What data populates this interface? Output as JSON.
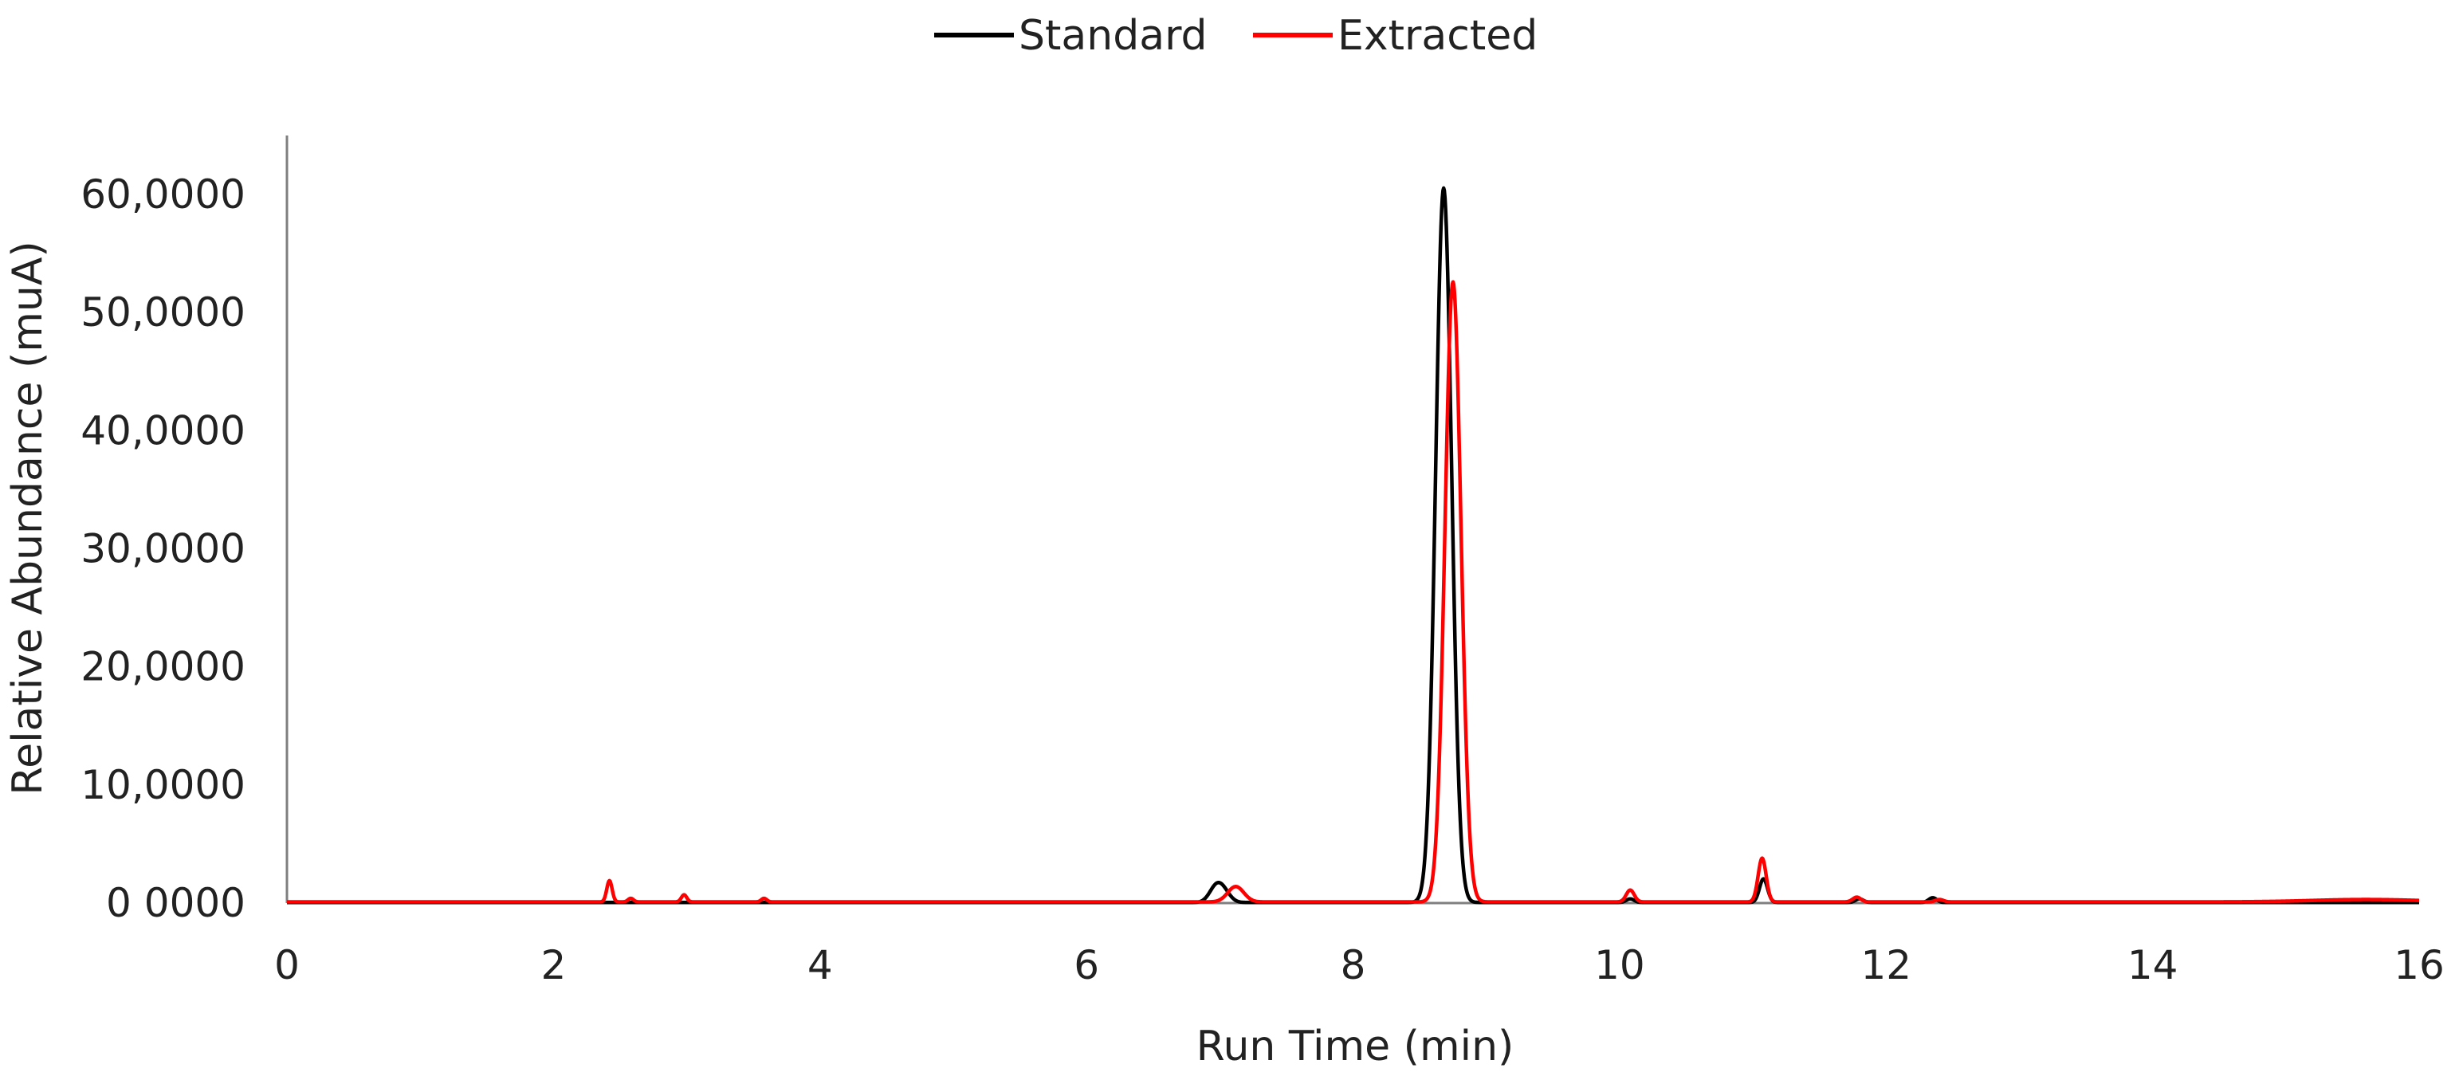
{
  "chart_data": {
    "type": "line",
    "title": "",
    "xlabel": "Run Time (min)",
    "ylabel": "Relative Abundance (muA)",
    "xlim": [
      0,
      16
    ],
    "ylim": [
      0,
      65
    ],
    "x_ticks": [
      0,
      2,
      4,
      6,
      8,
      10,
      12,
      14,
      16
    ],
    "x_tick_labels": [
      "0",
      "2",
      "4",
      "6",
      "8",
      "10",
      "12",
      "14",
      "16"
    ],
    "y_ticks": [
      0,
      10,
      20,
      30,
      40,
      50,
      60
    ],
    "y_tick_labels": [
      "0 0000",
      "10,0000",
      "20,0000",
      "30,0000",
      "40,0000",
      "50,0000",
      "60,0000"
    ],
    "grid": false,
    "legend_position": "top-center",
    "series": [
      {
        "name": "Standard",
        "color": "#000000",
        "baseline": 0.05,
        "peaks": [
          {
            "rt": 6.97,
            "height": 1.2,
            "width": 0.05
          },
          {
            "rt": 7.03,
            "height": 0.8,
            "width": 0.05
          },
          {
            "rt": 8.68,
            "height": 60.5,
            "width": 0.06
          },
          {
            "rt": 10.08,
            "height": 0.3,
            "width": 0.03
          },
          {
            "rt": 11.08,
            "height": 2.0,
            "width": 0.03
          },
          {
            "rt": 11.8,
            "height": 0.3,
            "width": 0.03
          },
          {
            "rt": 12.35,
            "height": 0.4,
            "width": 0.03
          }
        ]
      },
      {
        "name": "Extracted",
        "color": "#ff0000",
        "baseline": 0.1,
        "peaks": [
          {
            "rt": 2.42,
            "height": 1.8,
            "width": 0.02
          },
          {
            "rt": 2.58,
            "height": 0.3,
            "width": 0.02
          },
          {
            "rt": 2.98,
            "height": 0.6,
            "width": 0.02
          },
          {
            "rt": 3.58,
            "height": 0.3,
            "width": 0.02
          },
          {
            "rt": 7.12,
            "height": 1.3,
            "width": 0.06
          },
          {
            "rt": 8.75,
            "height": 52.5,
            "width": 0.06
          },
          {
            "rt": 10.08,
            "height": 1.0,
            "width": 0.03
          },
          {
            "rt": 11.07,
            "height": 3.7,
            "width": 0.03
          },
          {
            "rt": 11.78,
            "height": 0.4,
            "width": 0.03
          },
          {
            "rt": 12.4,
            "height": 0.2,
            "width": 0.03
          },
          {
            "rt": 15.6,
            "height": 0.2,
            "width": 0.4
          }
        ]
      }
    ]
  }
}
